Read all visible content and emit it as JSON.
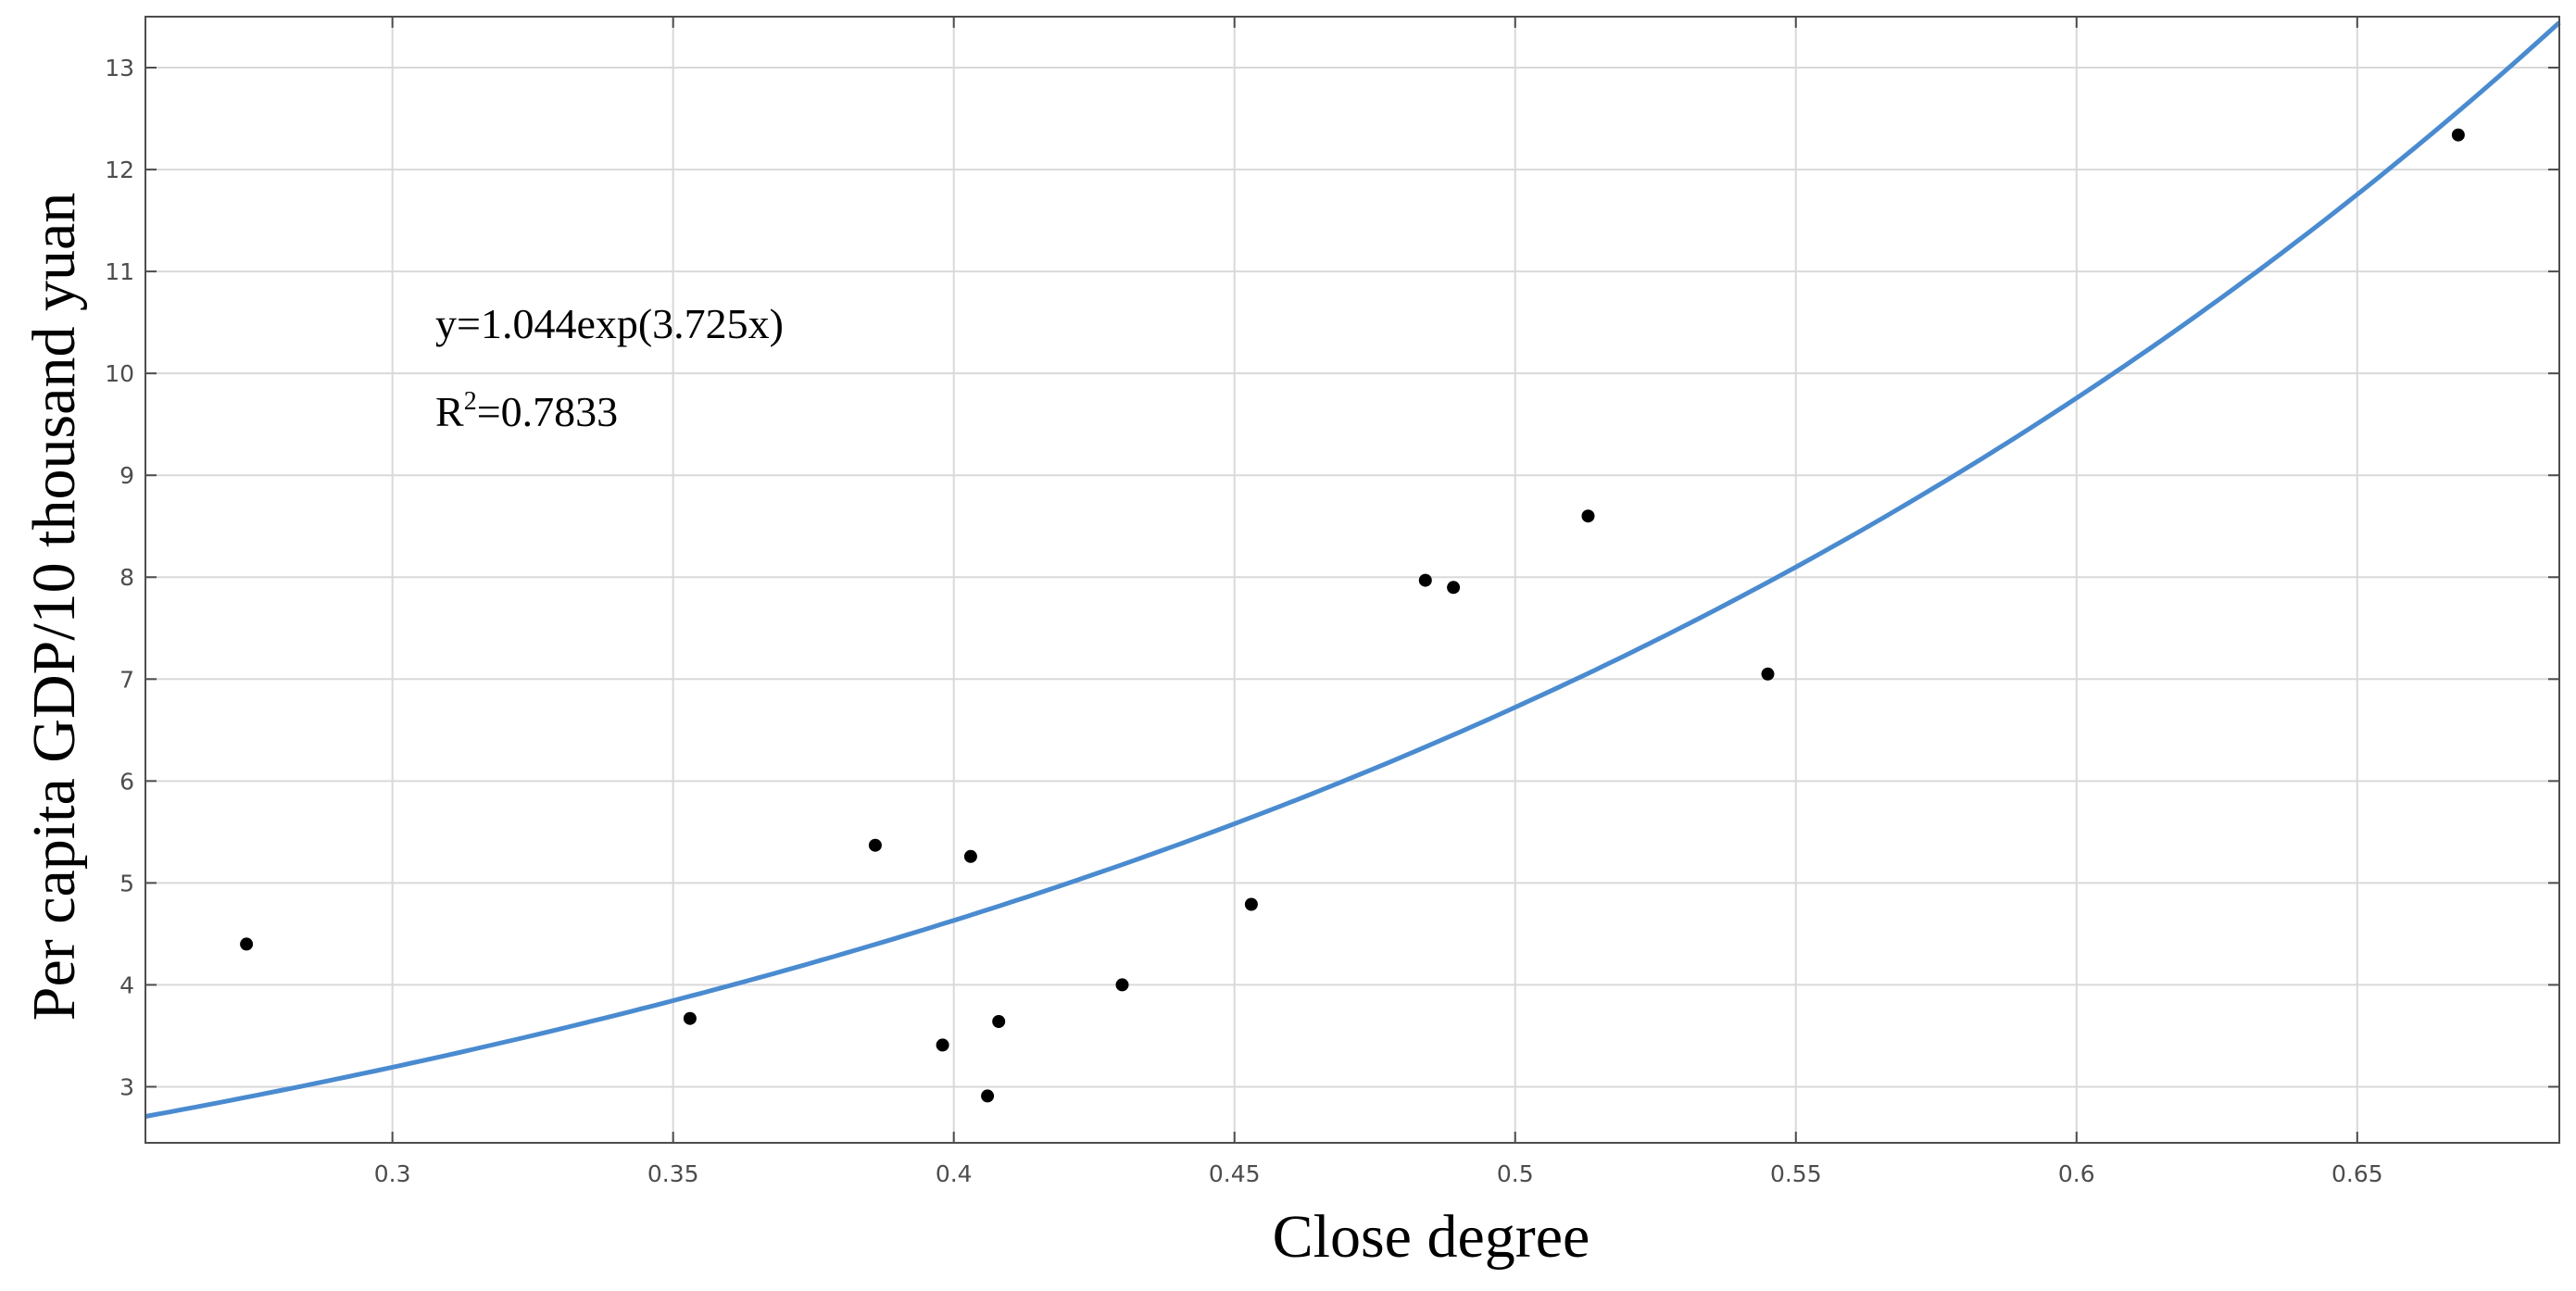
{
  "chart_data": {
    "type": "scatter",
    "title": "",
    "xlabel": "Close degree",
    "ylabel": "Per capita GDP/10 thousand yuan",
    "xlim": [
      0.256,
      0.686
    ],
    "ylim": [
      2.45,
      13.5
    ],
    "grid": true,
    "x_ticks": [
      0.3,
      0.35,
      0.4,
      0.45,
      0.5,
      0.55,
      0.6,
      0.65
    ],
    "y_ticks": [
      3,
      4,
      5,
      6,
      7,
      8,
      9,
      10,
      11,
      12,
      13
    ],
    "x_tick_labels": [
      "0.3",
      "0.35",
      "0.4",
      "0.45",
      "0.5",
      "0.55",
      "0.6",
      "0.65"
    ],
    "y_tick_labels": [
      "3",
      "4",
      "5",
      "6",
      "7",
      "8",
      "9",
      "10",
      "11",
      "12",
      "13"
    ],
    "points": {
      "x": [
        0.274,
        0.353,
        0.386,
        0.398,
        0.403,
        0.406,
        0.408,
        0.43,
        0.453,
        0.484,
        0.489,
        0.513,
        0.545,
        0.668
      ],
      "y": [
        4.4,
        3.67,
        5.37,
        3.41,
        5.26,
        2.91,
        3.64,
        4.0,
        4.79,
        7.97,
        7.9,
        8.6,
        7.05,
        12.34
      ]
    },
    "fit": {
      "equation": "y=1.044exp(3.725x)",
      "a": 1.044,
      "b": 3.725,
      "r_squared_prefix": "R",
      "r_squared_sup": "2",
      "r_squared_value": "=0.7833"
    },
    "colors": {
      "fit_line": "#4a8bd0",
      "points": "#000000",
      "grid": "#d9d9d9",
      "axes": "#4d4d4d"
    }
  }
}
